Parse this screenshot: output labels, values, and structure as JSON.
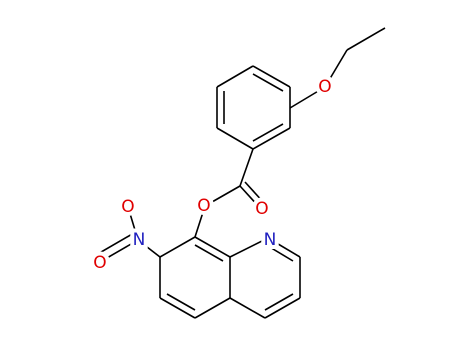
{
  "atoms": [
    {
      "label": "O"
    },
    {
      "label": "O"
    },
    {
      "label": "O"
    },
    {
      "label": "N"
    },
    {
      "label": "O"
    },
    {
      "label": "O"
    },
    {
      "label": "N"
    }
  ]
}
